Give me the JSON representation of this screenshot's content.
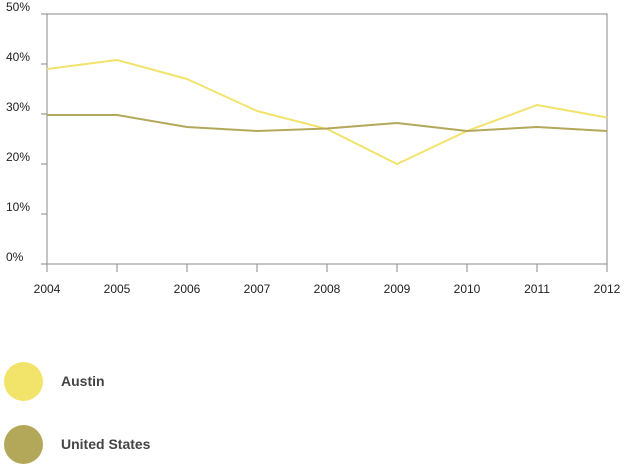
{
  "chart_data": {
    "type": "line",
    "title": "",
    "xlabel": "",
    "ylabel": "",
    "categories": [
      "2004",
      "2005",
      "2006",
      "2007",
      "2008",
      "2009",
      "2010",
      "2011",
      "2012"
    ],
    "ylim": [
      0,
      50
    ],
    "yticks": [
      0,
      10,
      20,
      30,
      40,
      50
    ],
    "ytick_labels": [
      "0%",
      "10%",
      "20%",
      "30%",
      "40%",
      "50%"
    ],
    "grid": false,
    "legend_position": "bottom-left",
    "series": [
      {
        "name": "Austin",
        "color": "#f2e36b",
        "values": [
          39,
          40.8,
          37,
          30.6,
          27,
          20,
          26.6,
          31.8,
          29.3
        ]
      },
      {
        "name": "United States",
        "color": "#b3a85a",
        "values": [
          29.8,
          29.8,
          27.4,
          26.6,
          27.1,
          28.2,
          26.6,
          27.4,
          26.6
        ]
      }
    ]
  }
}
